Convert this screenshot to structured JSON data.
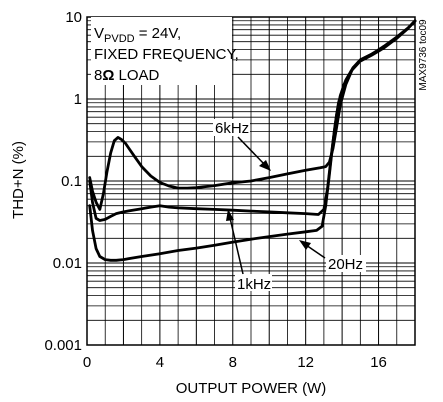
{
  "chart_data": {
    "type": "line",
    "title": "",
    "xlabel": "OUTPUT POWER (W)",
    "ylabel": "THD+N (%)",
    "xlim": [
      0,
      18
    ],
    "ylim": [
      0.001,
      10
    ],
    "yscale": "log",
    "grid": true,
    "x_ticks": [
      "0",
      "4",
      "8",
      "12",
      "16"
    ],
    "y_ticks": [
      "0.001",
      "0.01",
      "0.1",
      "1",
      "10"
    ],
    "conditions": {
      "prefix": "V",
      "subscript": "PVDD",
      "value": " = 24V,",
      "line2": "FIXED FREQUENCY,",
      "line3_value": "8",
      "line3_unit": "Ω",
      "line3_rest": " LOAD"
    },
    "side_code": "MAX9736 toc09",
    "series": [
      {
        "name": "6kHz",
        "x": [
          0.15,
          0.3,
          0.5,
          0.7,
          0.9,
          1.1,
          1.3,
          1.5,
          1.7,
          1.9,
          2.1,
          2.3,
          2.6,
          3.0,
          3.5,
          4.0,
          4.5,
          5.0,
          5.5,
          6.0,
          7.0,
          8.0,
          9.0,
          10.0,
          11.0,
          12.0,
          12.8,
          13.1,
          13.3,
          13.5,
          13.7,
          13.9,
          14.2,
          14.6,
          15.0,
          15.6,
          16.3,
          17.0,
          17.6,
          18.0
        ],
        "y": [
          0.11,
          0.075,
          0.055,
          0.045,
          0.07,
          0.13,
          0.22,
          0.31,
          0.34,
          0.32,
          0.29,
          0.25,
          0.2,
          0.15,
          0.115,
          0.096,
          0.087,
          0.082,
          0.082,
          0.083,
          0.088,
          0.095,
          0.1,
          0.11,
          0.122,
          0.135,
          0.145,
          0.15,
          0.17,
          0.25,
          0.45,
          0.85,
          1.5,
          2.4,
          3.0,
          3.5,
          4.4,
          5.7,
          7.3,
          8.9
        ]
      },
      {
        "name": "1kHz",
        "x": [
          0.15,
          0.3,
          0.5,
          0.7,
          1.0,
          1.3,
          1.6,
          2.0,
          2.5,
          3.0,
          3.5,
          4.0,
          4.5,
          5.0,
          6.0,
          7.0,
          8.0,
          9.0,
          10.0,
          11.0,
          12.0,
          12.7,
          13.0,
          13.2,
          13.4,
          13.6,
          13.8,
          14.1,
          14.5,
          15.0,
          15.6,
          16.3,
          17.0,
          17.6,
          18.0
        ],
        "y": [
          0.1,
          0.055,
          0.035,
          0.033,
          0.034,
          0.037,
          0.04,
          0.042,
          0.044,
          0.046,
          0.048,
          0.05,
          0.048,
          0.047,
          0.046,
          0.045,
          0.044,
          0.043,
          0.042,
          0.041,
          0.04,
          0.039,
          0.045,
          0.08,
          0.2,
          0.45,
          0.9,
          1.5,
          2.2,
          2.9,
          3.4,
          4.2,
          5.5,
          7.2,
          9.0
        ]
      },
      {
        "name": "20Hz",
        "x": [
          0.15,
          0.3,
          0.5,
          0.7,
          1.0,
          1.3,
          1.6,
          2.0,
          2.5,
          3.0,
          4.0,
          5.0,
          6.0,
          7.0,
          8.0,
          9.0,
          10.0,
          11.0,
          12.0,
          12.6,
          12.9,
          13.1,
          13.3,
          13.5,
          13.7,
          13.9,
          14.2,
          14.6,
          15.0,
          15.6,
          16.3,
          17.0,
          17.6,
          18.0
        ],
        "y": [
          0.05,
          0.025,
          0.015,
          0.012,
          0.011,
          0.0108,
          0.0108,
          0.011,
          0.0115,
          0.012,
          0.013,
          0.0142,
          0.0152,
          0.0165,
          0.018,
          0.0195,
          0.021,
          0.0225,
          0.024,
          0.025,
          0.028,
          0.05,
          0.12,
          0.3,
          0.65,
          1.1,
          1.7,
          2.4,
          3.0,
          3.5,
          4.3,
          5.6,
          7.2,
          9.0
        ]
      }
    ],
    "annotations": [
      {
        "text": "6kHz",
        "series": "6kHz"
      },
      {
        "text": "20Hz",
        "series": "20Hz"
      },
      {
        "text": "1kHz",
        "series": "1kHz"
      }
    ]
  }
}
